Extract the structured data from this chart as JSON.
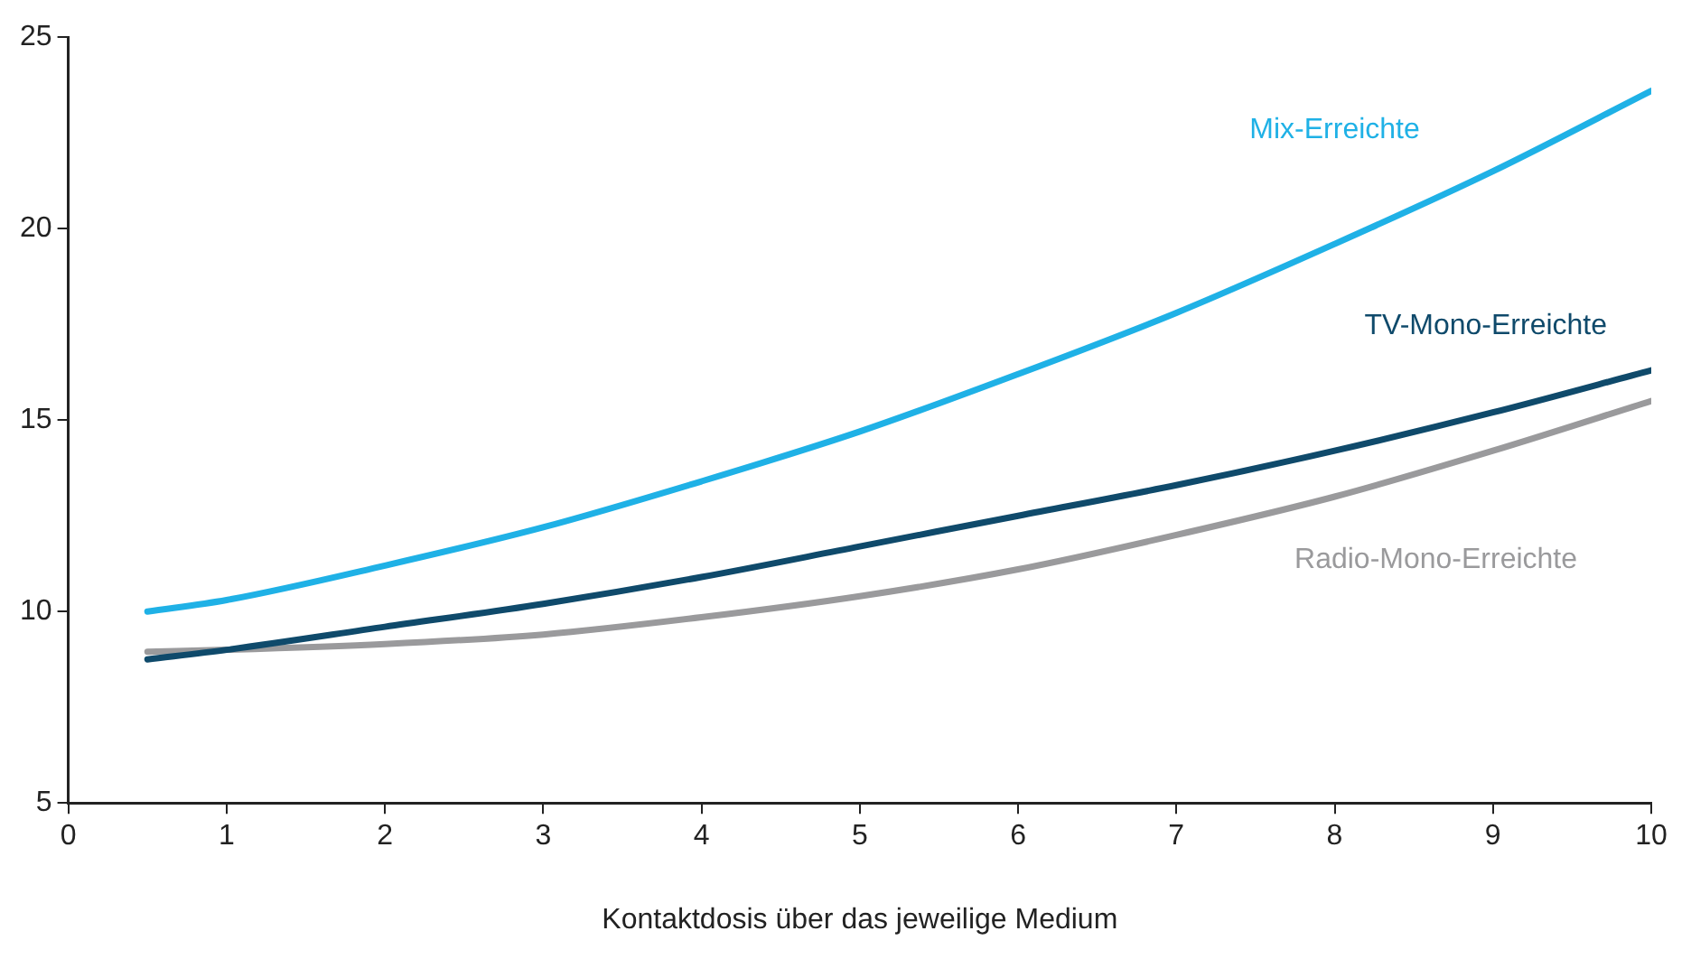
{
  "chart_data": {
    "type": "line",
    "xlabel": "Kontaktdosis über das jeweilige Medium",
    "x": [
      0.5,
      1,
      2,
      3,
      4,
      5,
      6,
      7,
      8,
      9,
      10
    ],
    "xlim": [
      0,
      10
    ],
    "xticks": [
      0,
      1,
      2,
      3,
      4,
      5,
      6,
      7,
      8,
      9,
      10
    ],
    "ylim": [
      5,
      25
    ],
    "yticks": [
      5,
      10,
      15,
      20,
      25
    ],
    "grid": false,
    "legend": false,
    "marker": "none",
    "line_style": "solid",
    "series": [
      {
        "name": "Mix-Erreichte",
        "color": "#1fb1e6",
        "values": [
          10.0,
          10.3,
          11.2,
          12.2,
          13.4,
          14.7,
          16.2,
          17.8,
          19.6,
          21.5,
          23.6
        ]
      },
      {
        "name": "TV-Mono-Erreichte",
        "color": "#0f4a6b",
        "values": [
          8.75,
          9.0,
          9.6,
          10.2,
          10.9,
          11.7,
          12.5,
          13.3,
          14.2,
          15.2,
          16.3
        ]
      },
      {
        "name": "Radio-Mono-Erreichte",
        "color": "#9a9a9c",
        "values": [
          8.95,
          9.0,
          9.15,
          9.4,
          9.85,
          10.4,
          11.1,
          12.0,
          13.0,
          14.2,
          15.5
        ]
      }
    ]
  }
}
